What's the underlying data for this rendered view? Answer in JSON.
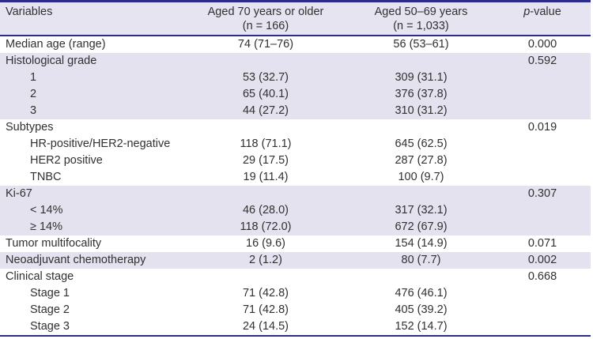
{
  "table": {
    "columns": [
      {
        "title": "Variables"
      },
      {
        "title": "Aged 70 years or older",
        "subtitle": "(n = 166)"
      },
      {
        "title": "Aged 50–69 years",
        "subtitle": "(n = 1,033)"
      },
      {
        "title_italic": "p",
        "title_rest": "-value"
      }
    ],
    "rows": [
      {
        "label": "Median age (range)",
        "indent": 0,
        "aged70": "74 (71–76)",
        "aged50to69": "56 (53–61)",
        "pvalue": "0.000",
        "shaded": false
      },
      {
        "label": "Histological grade",
        "indent": 0,
        "aged70": "",
        "aged50to69": "",
        "pvalue": "0.592",
        "shaded": true
      },
      {
        "label": "1",
        "indent": 1,
        "aged70": "53 (32.7)",
        "aged50to69": "309 (31.1)",
        "pvalue": "",
        "shaded": true
      },
      {
        "label": "2",
        "indent": 1,
        "aged70": "65 (40.1)",
        "aged50to69": "376 (37.8)",
        "pvalue": "",
        "shaded": true
      },
      {
        "label": "3",
        "indent": 1,
        "aged70": "44 (27.2)",
        "aged50to69": "310 (31.2)",
        "pvalue": "",
        "shaded": true
      },
      {
        "label": "Subtypes",
        "indent": 0,
        "aged70": "",
        "aged50to69": "",
        "pvalue": "0.019",
        "shaded": false
      },
      {
        "label": "HR-positive/HER2-negative",
        "indent": 1,
        "aged70": "118 (71.1)",
        "aged50to69": "645 (62.5)",
        "pvalue": "",
        "shaded": false
      },
      {
        "label": "HER2 positive",
        "indent": 1,
        "aged70": "29 (17.5)",
        "aged50to69": "287 (27.8)",
        "pvalue": "",
        "shaded": false
      },
      {
        "label": "TNBC",
        "indent": 1,
        "aged70": "19 (11.4)",
        "aged50to69": "100 (9.7)",
        "pvalue": "",
        "shaded": false
      },
      {
        "label": "Ki-67",
        "indent": 0,
        "aged70": "",
        "aged50to69": "",
        "pvalue": "0.307",
        "shaded": true
      },
      {
        "label": "< 14%",
        "indent": 1,
        "aged70": "46 (28.0)",
        "aged50to69": "317 (32.1)",
        "pvalue": "",
        "shaded": true
      },
      {
        "label": "≥ 14%",
        "indent": 1,
        "aged70": "118 (72.0)",
        "aged50to69": "672 (67.9)",
        "pvalue": "",
        "shaded": true
      },
      {
        "label": "Tumor multifocality",
        "indent": 0,
        "aged70": "16 (9.6)",
        "aged50to69": "154 (14.9)",
        "pvalue": "0.071",
        "shaded": false
      },
      {
        "label": "Neoadjuvant chemotherapy",
        "indent": 0,
        "aged70": "2 (1.2)",
        "aged50to69": "80 (7.7)",
        "pvalue": "0.002",
        "shaded": true
      },
      {
        "label": "Clinical stage",
        "indent": 0,
        "aged70": "",
        "aged50to69": "",
        "pvalue": "0.668",
        "shaded": false
      },
      {
        "label": "Stage 1",
        "indent": 1,
        "aged70": "71 (42.8)",
        "aged50to69": "476 (46.1)",
        "pvalue": "",
        "shaded": false
      },
      {
        "label": "Stage 2",
        "indent": 1,
        "aged70": "71 (42.8)",
        "aged50to69": "405 (39.2)",
        "pvalue": "",
        "shaded": false
      },
      {
        "label": "Stage 3",
        "indent": 1,
        "aged70": "24 (14.5)",
        "aged50to69": "152 (14.7)",
        "pvalue": "",
        "shaded": false
      }
    ],
    "colors": {
      "border_navy": "#2c2c8a",
      "header_lavender": "#e7e4f2",
      "band_lavender": "#e4e2ee",
      "text": "#303030"
    }
  }
}
